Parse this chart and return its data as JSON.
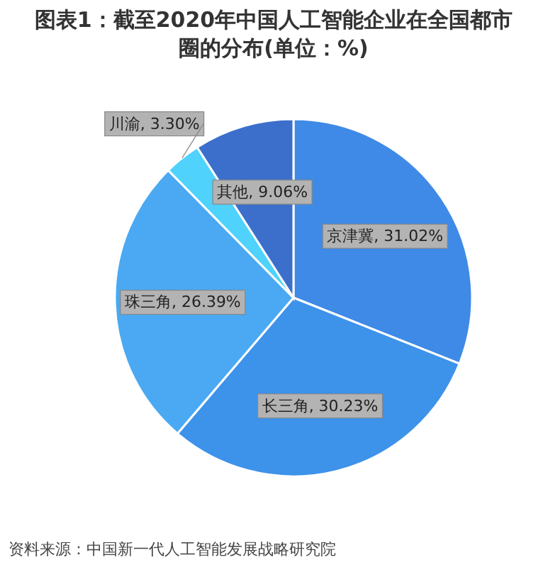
{
  "chart_data": {
    "type": "pie",
    "title": "图表1：截至2020年中国人工智能企业在全国都市圈的分布(单位：%)",
    "categories": [
      "京津冀",
      "长三角",
      "珠三角",
      "川渝",
      "其他"
    ],
    "values": [
      31.02,
      30.23,
      26.39,
      3.3,
      9.06
    ],
    "value_labels": [
      "31.02%",
      "30.23%",
      "26.39%",
      "3.30%",
      "9.06%"
    ],
    "colors": [
      "#3f8ae6",
      "#3d92ea",
      "#4aa9f2",
      "#4fd2fb",
      "#3b6fcb"
    ],
    "annotations": [
      "资料来源：中国新一代人工智能发展战略研究院"
    ]
  }
}
